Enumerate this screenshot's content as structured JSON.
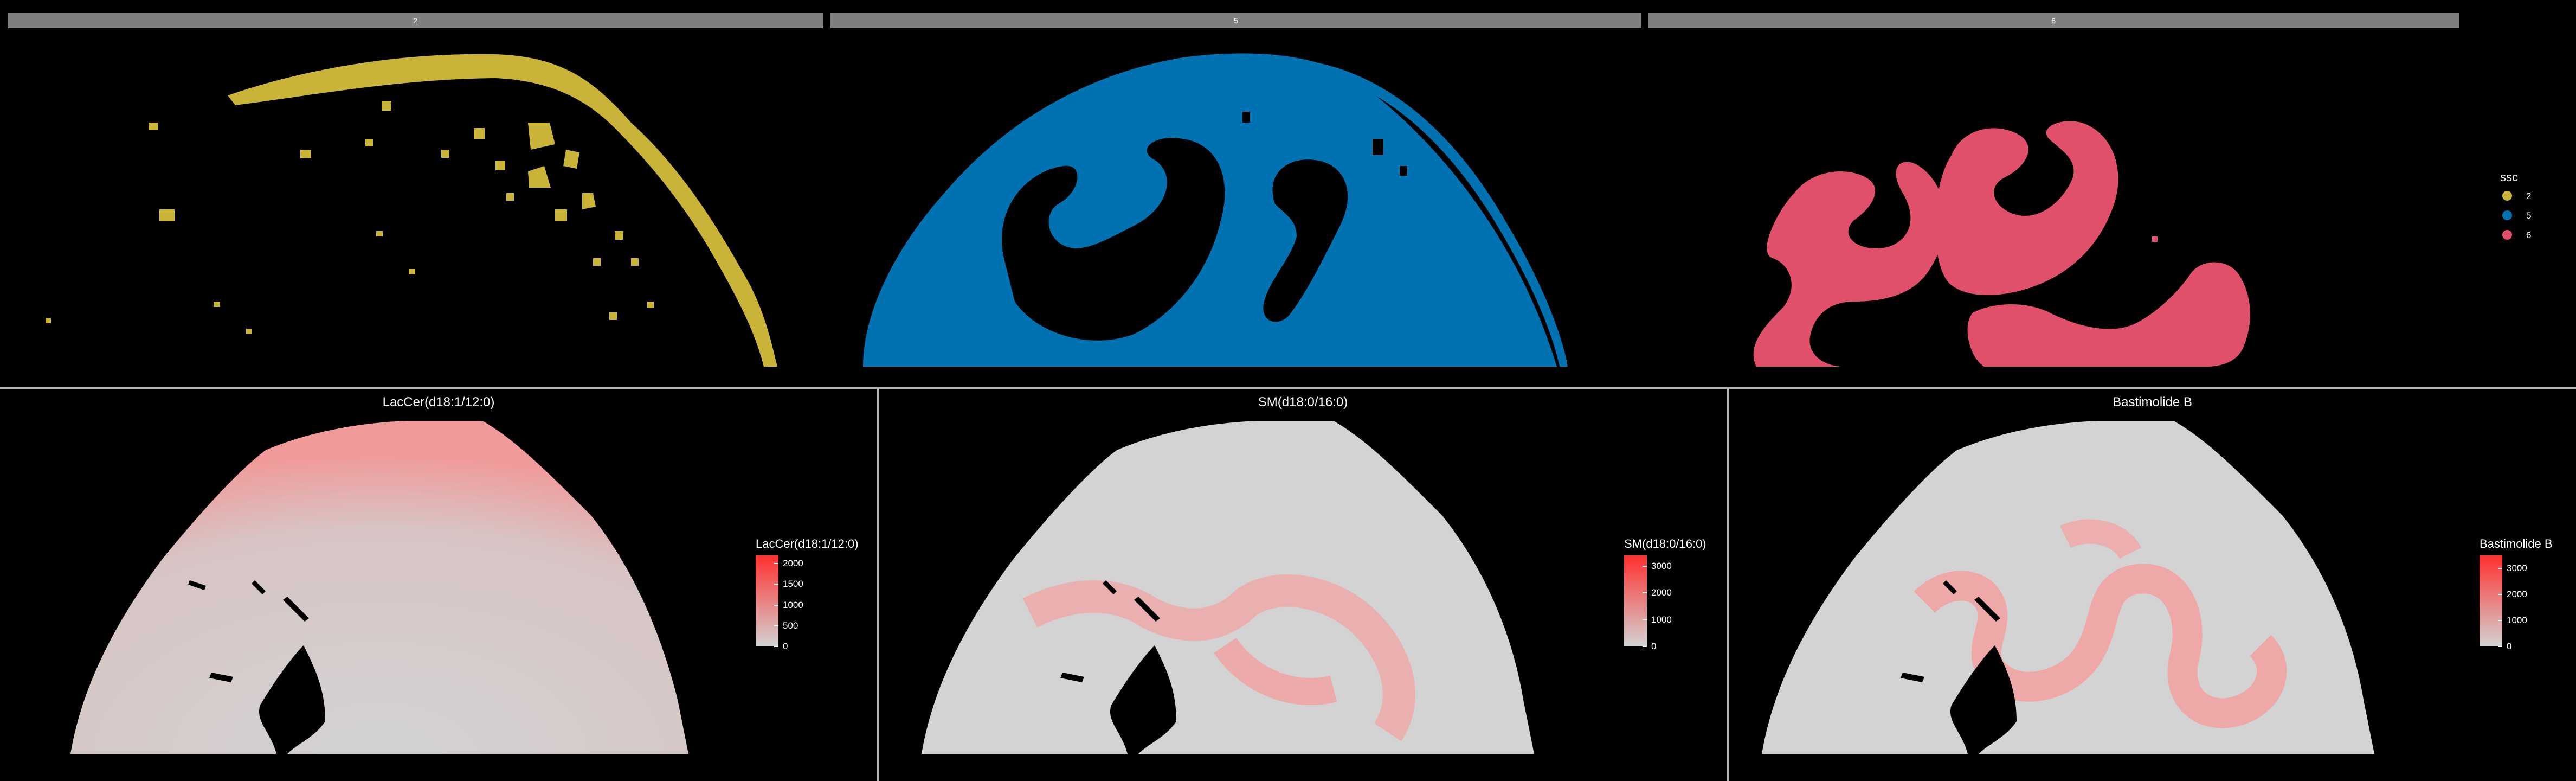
{
  "chart_data": [
    {
      "type": "heatmap",
      "subtype": "cluster-segmentation",
      "facets": [
        "2",
        "5",
        "6"
      ],
      "legend": {
        "title": "ssc",
        "placement": "right",
        "entries": [
          {
            "label": "2",
            "color": "#c9b338"
          },
          {
            "label": "5",
            "color": "#0072b2"
          },
          {
            "label": "6",
            "color": "#e0506a"
          }
        ]
      },
      "background": "#000000"
    },
    {
      "type": "heatmap",
      "title": "LacCer(d18:1/12:0)",
      "colorbar": {
        "title": "LacCer(d18:1/12:0)",
        "ticks": [
          0,
          500,
          1000,
          1500,
          2000
        ],
        "range": [
          0,
          2200
        ],
        "low_color": "#d3d3d3",
        "high_color": "#ff3030"
      }
    },
    {
      "type": "heatmap",
      "title": "SM(d18:0/16:0)",
      "colorbar": {
        "title": "SM(d18:0/16:0)",
        "ticks": [
          0,
          1000,
          2000,
          3000
        ],
        "range": [
          0,
          3400
        ],
        "low_color": "#d3d3d3",
        "high_color": "#ff3030"
      }
    },
    {
      "type": "heatmap",
      "title": "Bastimolide B",
      "colorbar": {
        "title": "Bastimolide B",
        "ticks": [
          0,
          1000,
          2000,
          3000
        ],
        "range": [
          0,
          3500
        ],
        "low_color": "#d3d3d3",
        "high_color": "#ff3030"
      }
    }
  ]
}
